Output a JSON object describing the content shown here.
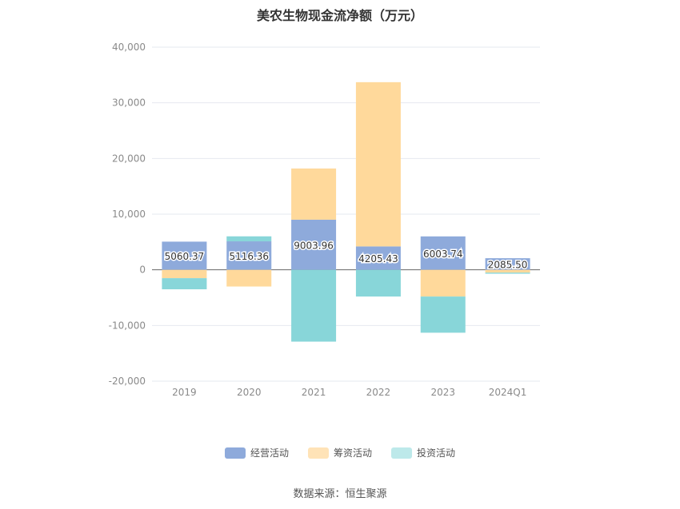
{
  "chart_data": {
    "type": "bar",
    "stacked": true,
    "title": "美农生物现金流净额（万元）",
    "categories": [
      "2019",
      "2020",
      "2021",
      "2022",
      "2023",
      "2024Q1"
    ],
    "ylim": [
      -20000,
      40000
    ],
    "yticks": [
      "40,000",
      "30,000",
      "20,000",
      "10,000",
      "0",
      "-10,000",
      "-20,000"
    ],
    "ytick_values": [
      40000,
      30000,
      20000,
      10000,
      0,
      -10000,
      -20000
    ],
    "grid": true,
    "legend_position": "bottom",
    "series": [
      {
        "name": "经营活动",
        "color": "#8eaadb",
        "values": [
          5060.37,
          5116.36,
          9003.96,
          4205.43,
          6003.74,
          2085.5
        ],
        "labels": [
          "5060.37",
          "5116.36",
          "9003.96",
          "4205.43",
          "6003.74",
          "2085.50"
        ]
      },
      {
        "name": "筹资活动",
        "color": "#ffd99b",
        "values": [
          -1500,
          -3000,
          9200,
          29500,
          -4800,
          -500
        ]
      },
      {
        "name": "投资活动",
        "color": "#88d6d9",
        "values": [
          -2000,
          900,
          -12900,
          -4800,
          -6500,
          -200
        ]
      }
    ]
  },
  "legend": [
    {
      "label": "经营活动",
      "color": "#8eaadb"
    },
    {
      "label": "筹资活动",
      "color": "#ffe3b7"
    },
    {
      "label": "投资活动",
      "color": "#bde9ea"
    }
  ],
  "source_text": "数据来源：恒生聚源"
}
